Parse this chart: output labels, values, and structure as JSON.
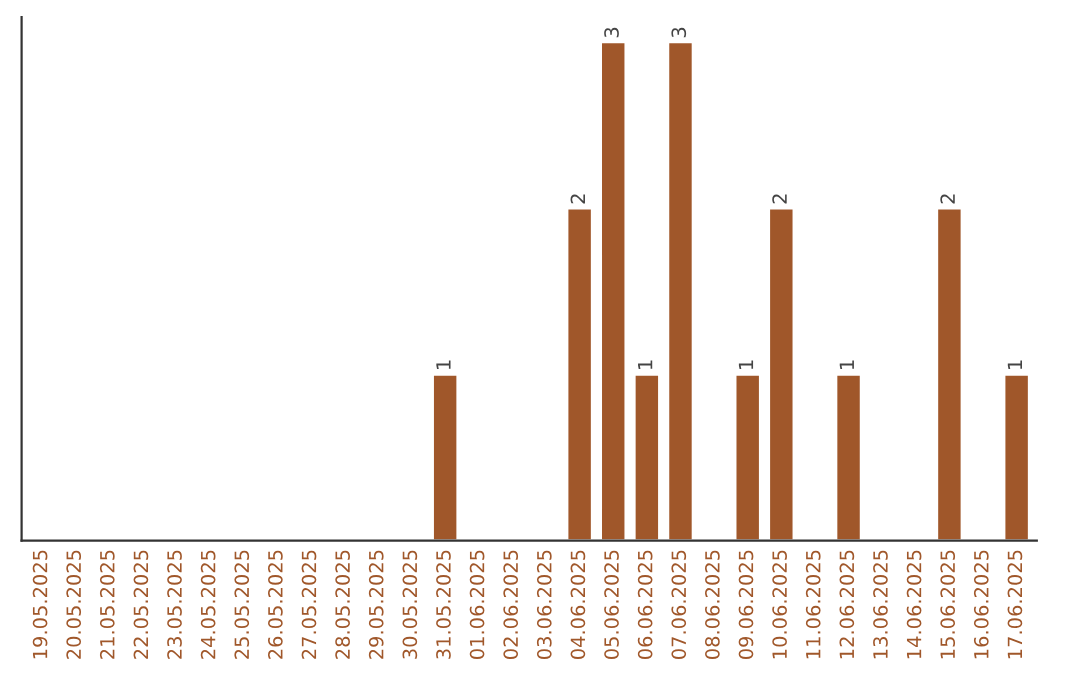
{
  "chart_data": {
    "type": "bar",
    "categories": [
      "19.05.2025",
      "20.05.2025",
      "21.05.2025",
      "22.05.2025",
      "23.05.2025",
      "24.05.2025",
      "25.05.2025",
      "26.05.2025",
      "27.05.2025",
      "28.05.2025",
      "29.05.2025",
      "30.05.2025",
      "31.05.2025",
      "01.06.2025",
      "02.06.2025",
      "03.06.2025",
      "04.06.2025",
      "05.06.2025",
      "06.06.2025",
      "07.06.2025",
      "08.06.2025",
      "09.06.2025",
      "10.06.2025",
      "11.06.2025",
      "12.06.2025",
      "13.06.2025",
      "14.06.2025",
      "15.06.2025",
      "16.06.2025",
      "17.06.2025"
    ],
    "values": [
      null,
      null,
      null,
      null,
      null,
      null,
      null,
      null,
      null,
      null,
      null,
      null,
      1,
      null,
      null,
      null,
      2,
      3,
      1,
      3,
      null,
      1,
      2,
      null,
      1,
      null,
      null,
      2,
      null,
      1
    ],
    "data_labels": true,
    "color": "#a0572a",
    "grid": false,
    "legend": false,
    "tick_labels": "x"
  }
}
